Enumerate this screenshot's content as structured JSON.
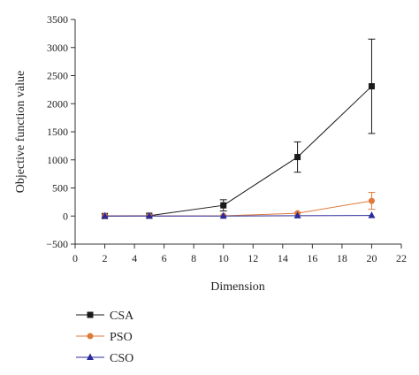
{
  "chart_data": {
    "type": "line",
    "title": "",
    "xlabel": "Dimension",
    "ylabel": "Objective function value",
    "xlim": [
      0,
      22
    ],
    "ylim": [
      -500,
      3500
    ],
    "xticks": [
      0,
      2,
      4,
      6,
      8,
      10,
      12,
      14,
      16,
      18,
      20,
      22
    ],
    "yticks": [
      -500,
      0,
      500,
      1000,
      1500,
      2000,
      2500,
      3000,
      3500
    ],
    "x": [
      2,
      5,
      10,
      15,
      20
    ],
    "series": [
      {
        "name": "CSA",
        "color": "#1a1a1a",
        "marker": "square",
        "values": [
          0,
          5,
          190,
          1050,
          2310
        ],
        "error": [
          0,
          0,
          100,
          270,
          840
        ]
      },
      {
        "name": "PSO",
        "color": "#e07a3c",
        "marker": "circle",
        "values": [
          0,
          0,
          3,
          50,
          270
        ],
        "error": [
          0,
          0,
          0,
          0,
          150
        ]
      },
      {
        "name": "CSO",
        "color": "#2a2a9c",
        "marker": "triangle",
        "values": [
          0,
          0,
          0,
          5,
          10
        ],
        "error": [
          0,
          0,
          0,
          0,
          0
        ]
      }
    ],
    "legend_position": "bottom-left",
    "grid": false
  }
}
